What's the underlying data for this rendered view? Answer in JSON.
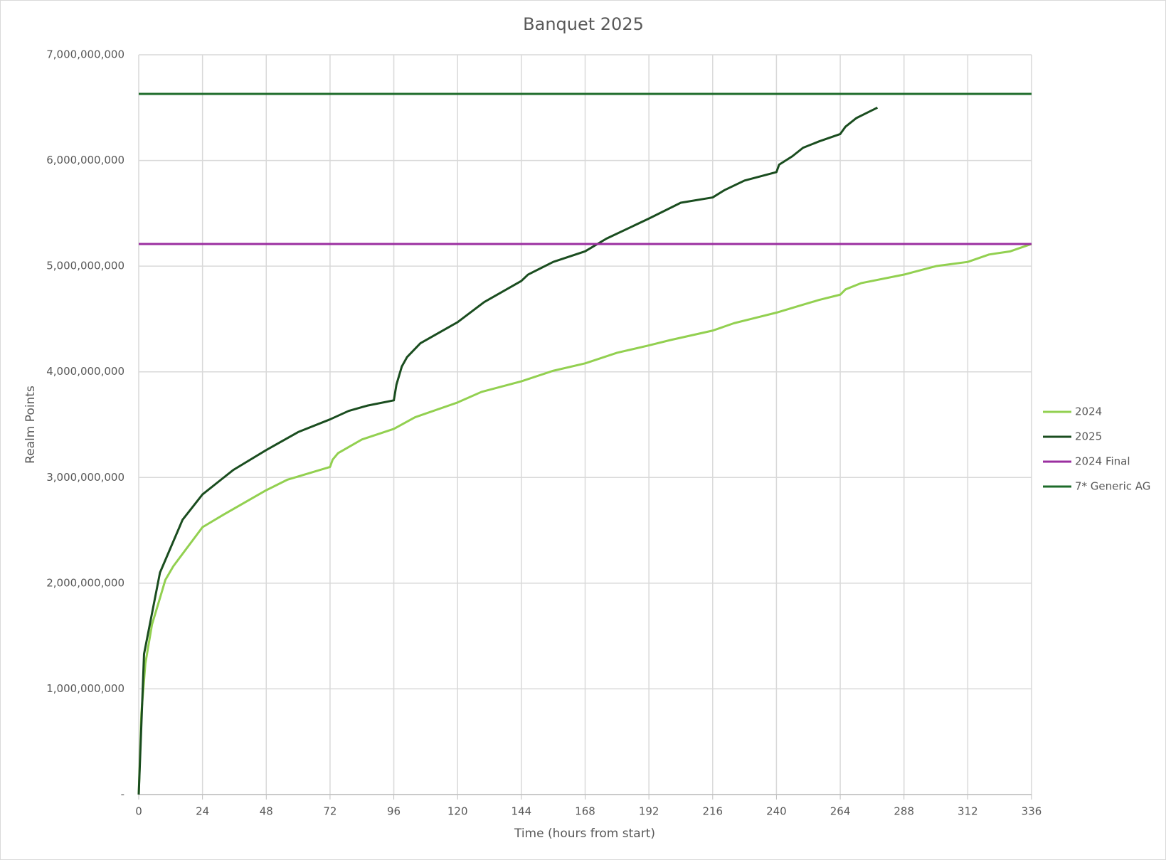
{
  "chart_data": {
    "type": "line",
    "title": "Banquet 2025",
    "x_label": "Time (hours from start)",
    "y_label": "Realm Points",
    "xlim": [
      0,
      336
    ],
    "xticks": [
      0,
      24,
      48,
      72,
      96,
      120,
      144,
      168,
      192,
      216,
      240,
      264,
      288,
      312,
      336
    ],
    "ylim": [
      0,
      7000000000
    ],
    "yticks": [
      {
        "value": 0,
        "label": "-"
      },
      {
        "value": 1000000000,
        "label": "1,000,000,000"
      },
      {
        "value": 2000000000,
        "label": "2,000,000,000"
      },
      {
        "value": 3000000000,
        "label": "3,000,000,000"
      },
      {
        "value": 4000000000,
        "label": "4,000,000,000"
      },
      {
        "value": 5000000000,
        "label": "5,000,000,000"
      },
      {
        "value": 6000000000,
        "label": "6,000,000,000"
      },
      {
        "value": 7000000000,
        "label": "7,000,000,000"
      }
    ],
    "grid": true,
    "legend": "right",
    "series": [
      {
        "name": "2024",
        "color": "#92d050",
        "x": [
          0,
          1,
          2.5,
          5,
          8,
          10,
          13,
          24,
          32,
          48,
          56,
          72,
          73,
          75,
          84,
          96,
          104,
          120,
          129,
          144,
          156,
          168,
          180,
          192,
          200,
          216,
          224,
          232,
          240,
          248,
          256,
          264,
          266,
          272,
          288,
          300,
          312,
          320,
          328,
          336
        ],
        "values": [
          0,
          770000000,
          1240000000,
          1610000000,
          1860000000,
          2030000000,
          2160000000,
          2530000000,
          2650000000,
          2880000000,
          2980000000,
          3100000000,
          3170000000,
          3230000000,
          3360000000,
          3460000000,
          3570000000,
          3710000000,
          3810000000,
          3910000000,
          4010000000,
          4080000000,
          4180000000,
          4250000000,
          4300000000,
          4390000000,
          4460000000,
          4510000000,
          4560000000,
          4620000000,
          4680000000,
          4730000000,
          4780000000,
          4840000000,
          4920000000,
          5000000000,
          5040000000,
          5110000000,
          5140000000,
          5210000000
        ]
      },
      {
        "name": "2025",
        "color": "#1a4d1f",
        "x": [
          0,
          2,
          8,
          16.5,
          24,
          31,
          35.5,
          48,
          60,
          72,
          79,
          86,
          96,
          97,
          99,
          101,
          106,
          120,
          130,
          144,
          146.5,
          156,
          168,
          176,
          192,
          204,
          216,
          220.5,
          228,
          240,
          241,
          246,
          250,
          256,
          264,
          266,
          270,
          274,
          278
        ],
        "values": [
          0,
          1330000000,
          2100000000,
          2600000000,
          2840000000,
          2980000000,
          3070000000,
          3260000000,
          3430000000,
          3550000000,
          3630000000,
          3680000000,
          3730000000,
          3880000000,
          4050000000,
          4140000000,
          4270000000,
          4470000000,
          4660000000,
          4860000000,
          4920000000,
          5040000000,
          5140000000,
          5260000000,
          5450000000,
          5600000000,
          5650000000,
          5720000000,
          5810000000,
          5890000000,
          5960000000,
          6040000000,
          6120000000,
          6180000000,
          6250000000,
          6320000000,
          6400000000,
          6450000000,
          6500000000
        ]
      },
      {
        "name": "2024 Final",
        "color": "#9b2fa0",
        "x": [
          0,
          336
        ],
        "values": [
          5210000000,
          5210000000
        ]
      },
      {
        "name": "7* Generic AG",
        "color": "#1e6b2a",
        "x": [
          0,
          336
        ],
        "values": [
          6630000000,
          6630000000
        ]
      }
    ]
  }
}
